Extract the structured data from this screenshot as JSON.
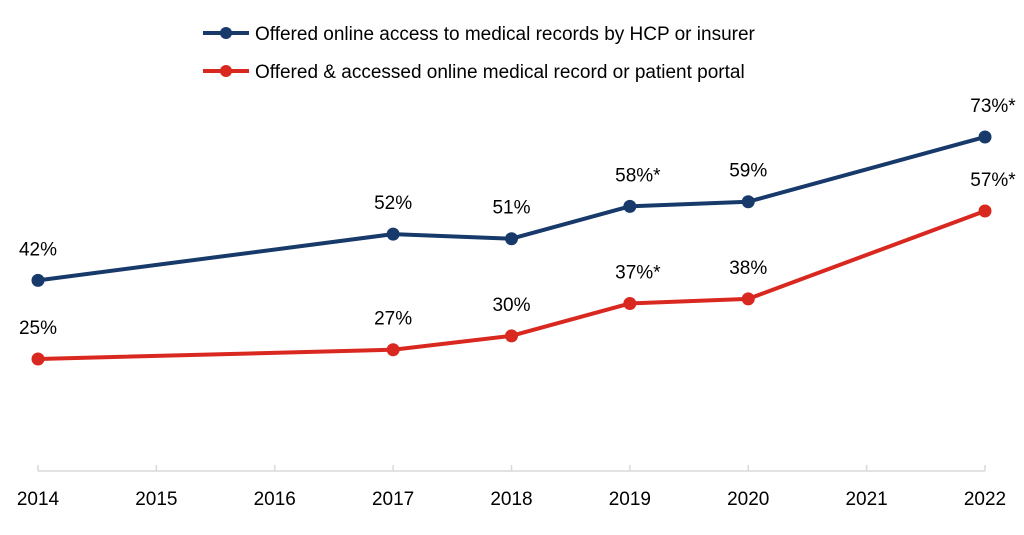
{
  "chart_data": {
    "type": "line",
    "categories": [
      "2014",
      "2015",
      "2016",
      "2017",
      "2018",
      "2019",
      "2020",
      "2021",
      "2022"
    ],
    "x": [
      2014,
      2017,
      2018,
      2019,
      2020,
      2022
    ],
    "series": [
      {
        "name": "Offered online access to medical records by HCP or insurer",
        "color": "#173a6b",
        "values": [
          42,
          52,
          51,
          58,
          59,
          73
        ],
        "labels": [
          "42%",
          "52%",
          "51%",
          "58%*",
          "59%",
          "73%*"
        ]
      },
      {
        "name": "Offered & accessed online medical record or patient portal",
        "color": "#d9281f",
        "values": [
          25,
          27,
          30,
          37,
          38,
          57
        ],
        "labels": [
          "25%",
          "27%",
          "30%",
          "37%*",
          "38%",
          "57%*"
        ]
      }
    ],
    "ylim": [
      0,
      80
    ],
    "grid": false,
    "legend": "top-center",
    "axis_color": "#d9d9d9"
  }
}
